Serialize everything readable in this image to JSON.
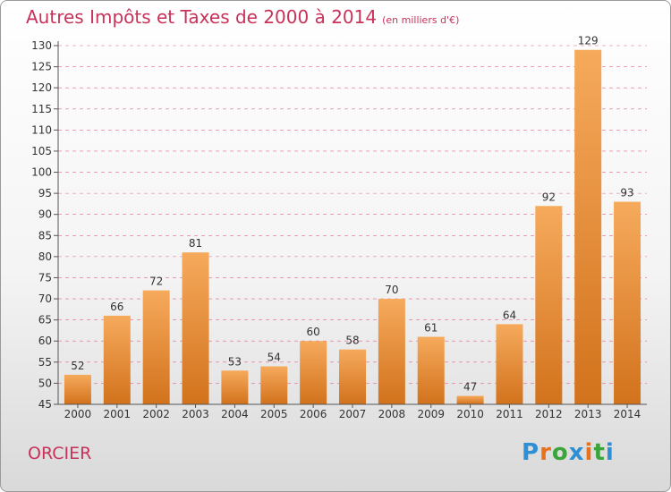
{
  "title": "Autres Impôts et Taxes de 2000 à 2014",
  "subtitle": "(en milliers d'€)",
  "commune": "ORCIER",
  "logo": {
    "text": "Proxiti",
    "colors": [
      "#2f8fd4",
      "#e8721c",
      "#3aa53a",
      "#2f8fd4",
      "#e8721c",
      "#3aa53a",
      "#2f8fd4"
    ]
  },
  "colors": {
    "bar_light": "#f6aa5c",
    "bar_dark": "#d2721c",
    "title": "#c8325a",
    "grid": "#e06688"
  },
  "chart_data": {
    "type": "bar",
    "categories": [
      "2000",
      "2001",
      "2002",
      "2003",
      "2004",
      "2005",
      "2006",
      "2007",
      "2008",
      "2009",
      "2010",
      "2011",
      "2012",
      "2013",
      "2014"
    ],
    "values": [
      52,
      66,
      72,
      81,
      53,
      54,
      60,
      58,
      70,
      61,
      47,
      64,
      92,
      129,
      93
    ],
    "ylim": [
      45,
      130
    ],
    "yticks": [
      45,
      50,
      55,
      60,
      65,
      70,
      75,
      80,
      85,
      90,
      95,
      100,
      105,
      110,
      115,
      120,
      125,
      130
    ],
    "grid": true
  }
}
